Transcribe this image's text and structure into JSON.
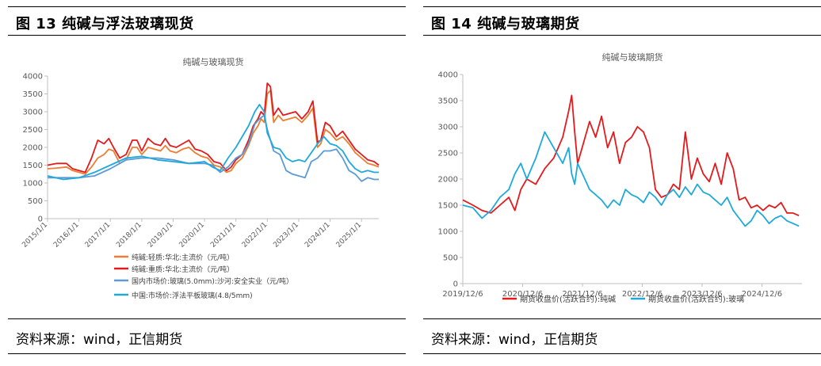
{
  "figures": [
    {
      "title": "图 13  纯碱与浮法玻璃现货",
      "source": "资料来源：wind，正信期货"
    },
    {
      "title": "图 14  纯碱与玻璃期货",
      "source": "资料来源：wind，正信期货"
    }
  ],
  "colors": {
    "orange": "#ED7D31",
    "red": "#E31A1C",
    "blue": "#5B9BD5",
    "cyan": "#1FA9DB"
  },
  "chart_data": [
    {
      "type": "line",
      "title": "纯碱与玻璃现货",
      "ylim": [
        0,
        4000
      ],
      "yticks": [
        "0",
        "500",
        "1000",
        "1500",
        "2000",
        "2500",
        "3000",
        "3500",
        "4000"
      ],
      "xticks": [
        "2015/1/1",
        "2016/1/1",
        "2017/1/1",
        "2018/1/1",
        "2019/1/1",
        "2020/1/1",
        "2021/1/1",
        "2022/1/1",
        "2023/1/1",
        "2024/1/1",
        "2025/1/1"
      ],
      "xlim": [
        2015.0,
        2025.55
      ],
      "grid": false,
      "legend_position": "bottom",
      "series": [
        {
          "name": "纯碱:轻质:华北:主流价（元/吨）",
          "color": "#ED7D31",
          "x": [
            2015.0,
            2015.3,
            2015.6,
            2015.8,
            2016.0,
            2016.2,
            2016.4,
            2016.6,
            2016.8,
            2016.95,
            2017.1,
            2017.3,
            2017.5,
            2017.7,
            2017.85,
            2018.0,
            2018.2,
            2018.4,
            2018.6,
            2018.75,
            2018.9,
            2019.1,
            2019.3,
            2019.5,
            2019.7,
            2019.9,
            2020.1,
            2020.3,
            2020.5,
            2020.7,
            2020.85,
            2021.0,
            2021.2,
            2021.4,
            2021.55,
            2021.7,
            2021.8,
            2021.9,
            2022.0,
            2022.1,
            2022.2,
            2022.35,
            2022.5,
            2022.7,
            2022.9,
            2023.1,
            2023.3,
            2023.45,
            2023.6,
            2023.7,
            2023.85,
            2024.0,
            2024.2,
            2024.4,
            2024.6,
            2024.8,
            2025.0,
            2025.2,
            2025.4,
            2025.55
          ],
          "y": [
            1400,
            1420,
            1450,
            1350,
            1300,
            1250,
            1450,
            1700,
            1800,
            1950,
            1900,
            1550,
            1650,
            2000,
            2000,
            1800,
            2000,
            1950,
            1900,
            2050,
            1900,
            1850,
            1950,
            2000,
            1850,
            1750,
            1700,
            1500,
            1450,
            1300,
            1350,
            1550,
            1700,
            2050,
            2400,
            2600,
            2800,
            2700,
            3500,
            3600,
            2700,
            2900,
            2750,
            2800,
            2850,
            2700,
            2900,
            3100,
            2000,
            2100,
            2500,
            2400,
            2200,
            2300,
            2100,
            1850,
            1700,
            1550,
            1500,
            1450
          ]
        },
        {
          "name": "纯碱:重质:华北:主流价（元/吨）",
          "color": "#E31A1C",
          "x": [
            2015.0,
            2015.3,
            2015.6,
            2015.8,
            2016.0,
            2016.2,
            2016.4,
            2016.6,
            2016.8,
            2016.95,
            2017.1,
            2017.3,
            2017.5,
            2017.7,
            2017.85,
            2018.0,
            2018.2,
            2018.4,
            2018.6,
            2018.75,
            2018.9,
            2019.1,
            2019.3,
            2019.5,
            2019.7,
            2019.9,
            2020.1,
            2020.3,
            2020.5,
            2020.7,
            2020.85,
            2021.0,
            2021.2,
            2021.4,
            2021.55,
            2021.7,
            2021.8,
            2021.9,
            2022.0,
            2022.1,
            2022.2,
            2022.35,
            2022.5,
            2022.7,
            2022.9,
            2023.1,
            2023.3,
            2023.45,
            2023.6,
            2023.7,
            2023.85,
            2024.0,
            2024.2,
            2024.4,
            2024.6,
            2024.8,
            2025.0,
            2025.2,
            2025.4,
            2025.55
          ],
          "y": [
            1500,
            1550,
            1550,
            1400,
            1350,
            1300,
            1700,
            2200,
            2100,
            2250,
            2000,
            1700,
            1800,
            2200,
            2200,
            1900,
            2250,
            2100,
            2050,
            2250,
            2050,
            2000,
            2100,
            2200,
            1950,
            1900,
            1800,
            1600,
            1550,
            1350,
            1450,
            1650,
            1800,
            2200,
            2600,
            2800,
            3000,
            2900,
            3800,
            3700,
            2900,
            3100,
            2900,
            2950,
            3000,
            2800,
            3000,
            3300,
            2150,
            2200,
            2700,
            2600,
            2300,
            2450,
            2200,
            1950,
            1800,
            1650,
            1600,
            1500
          ]
        },
        {
          "name": "国内市场价:玻璃(5.0mm):沙河:安全实业（元/吨）",
          "color": "#5B9BD5",
          "x": [
            2015.0,
            2015.5,
            2016.0,
            2016.5,
            2017.0,
            2017.5,
            2018.0,
            2018.5,
            2019.0,
            2019.5,
            2020.0,
            2020.25,
            2020.5,
            2020.75,
            2021.0,
            2021.2,
            2021.4,
            2021.6,
            2021.75,
            2021.9,
            2022.0,
            2022.2,
            2022.4,
            2022.6,
            2022.8,
            2023.0,
            2023.2,
            2023.4,
            2023.6,
            2023.8,
            2024.0,
            2024.2,
            2024.4,
            2024.6,
            2024.8,
            2025.0,
            2025.2,
            2025.4,
            2025.55
          ],
          "y": [
            1150,
            1150,
            1150,
            1200,
            1400,
            1650,
            1700,
            1700,
            1650,
            1550,
            1550,
            1500,
            1300,
            1450,
            1700,
            1800,
            2100,
            2650,
            2800,
            2900,
            2500,
            1900,
            1800,
            1350,
            1250,
            1200,
            1150,
            1600,
            1700,
            1900,
            1900,
            1950,
            1700,
            1350,
            1250,
            1050,
            1150,
            1100,
            1100
          ]
        },
        {
          "name": "中国:市场价:浮法平板玻璃(4.8/5mm)",
          "color": "#1FA9DB",
          "x": [
            2015.0,
            2015.5,
            2016.0,
            2016.5,
            2017.0,
            2017.5,
            2018.0,
            2018.5,
            2019.0,
            2019.5,
            2020.0,
            2020.25,
            2020.5,
            2020.75,
            2021.0,
            2021.2,
            2021.4,
            2021.6,
            2021.75,
            2021.9,
            2022.0,
            2022.2,
            2022.4,
            2022.6,
            2022.8,
            2023.0,
            2023.2,
            2023.4,
            2023.6,
            2023.8,
            2024.0,
            2024.2,
            2024.4,
            2024.6,
            2024.8,
            2025.0,
            2025.2,
            2025.4,
            2025.55
          ],
          "y": [
            1200,
            1100,
            1150,
            1300,
            1500,
            1700,
            1750,
            1650,
            1600,
            1550,
            1600,
            1450,
            1350,
            1700,
            2000,
            2300,
            2600,
            3000,
            3200,
            3000,
            2400,
            2000,
            1950,
            1700,
            1600,
            1650,
            1600,
            1850,
            2100,
            2300,
            2100,
            2050,
            1900,
            1600,
            1400,
            1300,
            1350,
            1300,
            1300
          ]
        }
      ]
    },
    {
      "type": "line",
      "title": "纯碱与玻璃期货",
      "ylim": [
        0,
        4000
      ],
      "yticks": [
        "0",
        "500",
        "1000",
        "1500",
        "2000",
        "2500",
        "3000",
        "3500",
        "4000"
      ],
      "xticks": [
        "2019/12/6",
        "2020/12/6",
        "2021/12/6",
        "2022/12/6",
        "2023/12/6",
        "2024/12/6"
      ],
      "xlim": [
        2019.93,
        2025.6
      ],
      "grid": false,
      "legend_position": "bottom",
      "series": [
        {
          "name": "期货收盘价(活跃合约):纯碱",
          "color": "#E31A1C",
          "x": [
            2019.93,
            2020.1,
            2020.25,
            2020.4,
            2020.55,
            2020.7,
            2020.8,
            2020.9,
            2021.0,
            2021.15,
            2021.3,
            2021.45,
            2021.6,
            2021.7,
            2021.75,
            2021.8,
            2021.85,
            2021.95,
            2022.05,
            2022.15,
            2022.25,
            2022.35,
            2022.45,
            2022.55,
            2022.65,
            2022.75,
            2022.85,
            2022.95,
            2023.05,
            2023.15,
            2023.25,
            2023.35,
            2023.45,
            2023.55,
            2023.65,
            2023.75,
            2023.85,
            2023.95,
            2024.05,
            2024.15,
            2024.25,
            2024.35,
            2024.45,
            2024.55,
            2024.65,
            2024.75,
            2024.85,
            2024.95,
            2025.05,
            2025.15,
            2025.25,
            2025.35,
            2025.45,
            2025.55
          ],
          "y": [
            1600,
            1500,
            1400,
            1350,
            1500,
            1650,
            1400,
            1800,
            2000,
            1900,
            2200,
            2400,
            2800,
            3300,
            3600,
            2900,
            2300,
            2700,
            3100,
            2800,
            3200,
            2600,
            2900,
            2300,
            2700,
            2800,
            3000,
            2900,
            2600,
            1800,
            1650,
            1700,
            1900,
            1800,
            2900,
            2000,
            2400,
            2100,
            1950,
            2300,
            1900,
            2500,
            2200,
            1600,
            1650,
            1450,
            1500,
            1400,
            1500,
            1450,
            1550,
            1350,
            1350,
            1300
          ]
        },
        {
          "name": "期货收盘价(活跃合约):玻璃",
          "color": "#1FA9DB",
          "x": [
            2019.93,
            2020.1,
            2020.25,
            2020.4,
            2020.55,
            2020.7,
            2020.8,
            2020.9,
            2021.0,
            2021.15,
            2021.3,
            2021.45,
            2021.6,
            2021.7,
            2021.75,
            2021.8,
            2021.85,
            2021.95,
            2022.05,
            2022.15,
            2022.25,
            2022.35,
            2022.45,
            2022.55,
            2022.65,
            2022.75,
            2022.85,
            2022.95,
            2023.05,
            2023.15,
            2023.25,
            2023.35,
            2023.45,
            2023.55,
            2023.65,
            2023.75,
            2023.85,
            2023.95,
            2024.05,
            2024.15,
            2024.25,
            2024.35,
            2024.45,
            2024.55,
            2024.65,
            2024.75,
            2024.85,
            2024.95,
            2025.05,
            2025.15,
            2025.25,
            2025.35,
            2025.45,
            2025.55
          ],
          "y": [
            1500,
            1450,
            1250,
            1400,
            1650,
            1800,
            2100,
            2300,
            2000,
            2400,
            2900,
            2600,
            2300,
            2600,
            2100,
            1900,
            2300,
            2050,
            1800,
            1700,
            1600,
            1450,
            1600,
            1500,
            1800,
            1700,
            1650,
            1550,
            1750,
            1650,
            1500,
            1700,
            1800,
            1650,
            1850,
            1700,
            1900,
            1750,
            1700,
            1600,
            1500,
            1650,
            1400,
            1250,
            1100,
            1200,
            1400,
            1300,
            1150,
            1250,
            1300,
            1200,
            1150,
            1100
          ]
        }
      ]
    }
  ]
}
